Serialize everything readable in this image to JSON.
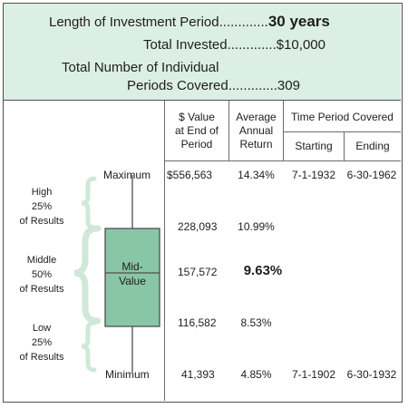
{
  "header": {
    "period_label": "Length of Investment Period",
    "period_dots": ".............",
    "period_value": "30 years",
    "invested_label": "Total Invested",
    "invested_dots": ".............",
    "invested_value": "$10,000",
    "periods_label_line1": "Total Number of Individual",
    "periods_label_line2": "Periods Covered",
    "periods_dots": ".............",
    "periods_value": "309"
  },
  "columns": {
    "value_end": [
      "$ Value",
      "at End of",
      "Period"
    ],
    "avg_return": [
      "Average",
      "Annual",
      "Return"
    ],
    "time_period": "Time Period Covered",
    "starting": "Starting",
    "ending": "Ending"
  },
  "side_labels": {
    "high": [
      "High",
      "25%",
      "of Results"
    ],
    "middle": [
      "Middle",
      "50%",
      "of Results"
    ],
    "low": [
      "Low",
      "25%",
      "of Results"
    ]
  },
  "box_label": [
    "Mid-",
    "Value"
  ],
  "colors": {
    "panel": "#dcefe5",
    "box": "#88c6a6",
    "brace": "#cfe8da",
    "line": "#4f4f4f"
  },
  "chart_data": {
    "type": "table",
    "rows": [
      {
        "label": "Maximum",
        "value": "$556,563",
        "return": "14.34%",
        "starting": "7-1-1932",
        "ending": "6-30-1962"
      },
      {
        "label": "",
        "value": "228,093",
        "return": "10.99%",
        "starting": "",
        "ending": ""
      },
      {
        "label": "",
        "value": "157,572",
        "return": "9.63%",
        "starting": "",
        "ending": ""
      },
      {
        "label": "",
        "value": "116,582",
        "return": "8.53%",
        "starting": "",
        "ending": ""
      },
      {
        "label": "Minimum",
        "value": "41,393",
        "return": "4.85%",
        "starting": "7-1-1902",
        "ending": "6-30-1932"
      }
    ]
  }
}
